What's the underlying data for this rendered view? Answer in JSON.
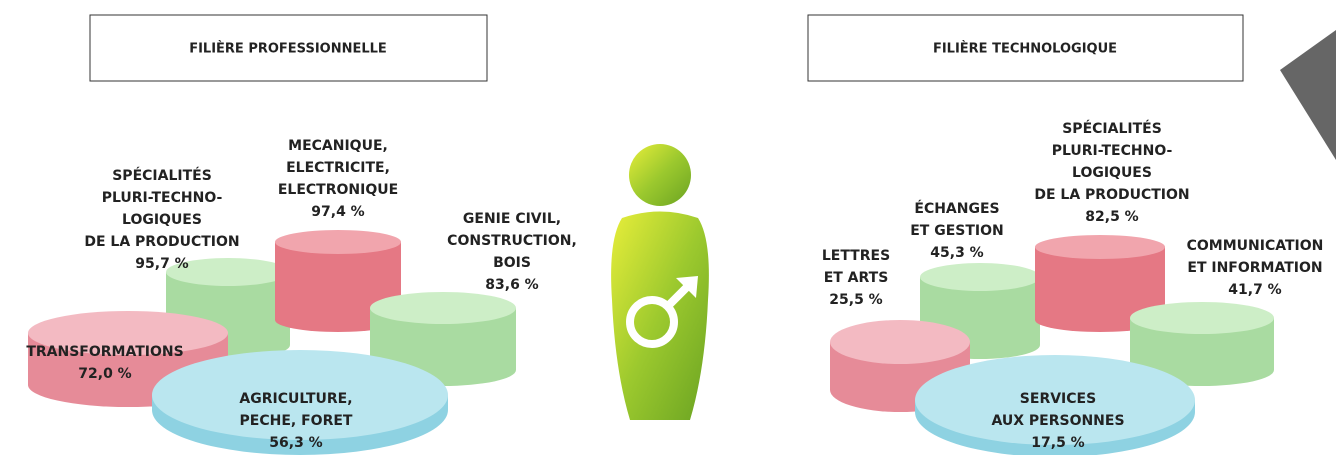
{
  "panels": [
    {
      "title": "FILIÈRE PROFESSIONNELLE",
      "segments": [
        {
          "lines": [
            "TRANSFORMATIONS"
          ],
          "value": "72,0 %"
        },
        {
          "lines": [
            "SPÉCIALITÉS",
            "PLURI-TECHNO-",
            "LOGIQUES",
            "DE LA PRODUCTION"
          ],
          "value": "95,7 %"
        },
        {
          "lines": [
            "MECANIQUE,",
            "ELECTRICITE,",
            "ELECTRONIQUE"
          ],
          "value": "97,4 %"
        },
        {
          "lines": [
            "GENIE CIVIL,",
            "CONSTRUCTION,",
            "BOIS"
          ],
          "value": "83,6 %"
        },
        {
          "lines": [
            "AGRICULTURE,",
            "PECHE, FORET"
          ],
          "value": "56,3 %"
        }
      ]
    },
    {
      "title": "FILIÈRE TECHNOLOGIQUE",
      "segments": [
        {
          "lines": [
            "LETTRES",
            "ET ARTS"
          ],
          "value": "25,5 %"
        },
        {
          "lines": [
            "ÉCHANGES",
            "ET GESTION"
          ],
          "value": "45,3 %"
        },
        {
          "lines": [
            "SPÉCIALITÉS",
            "PLURI-TECHNO-",
            "LOGIQUES",
            "DE LA PRODUCTION"
          ],
          "value": "82,5 %"
        },
        {
          "lines": [
            "COMMUNICATION",
            "ET INFORMATION"
          ],
          "value": "41,7 %"
        },
        {
          "lines": [
            "SERVICES",
            "AUX PERSONNES"
          ],
          "value": "17,5 %"
        }
      ]
    }
  ]
}
